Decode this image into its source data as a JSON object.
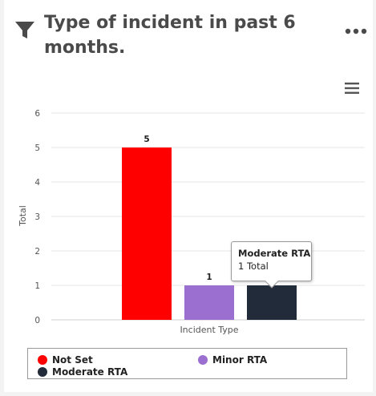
{
  "card": {
    "title": "Type of incident in past 6 months.",
    "icons": {
      "filter": "filter-icon",
      "more": "more-horizontal-icon",
      "menu": "hamburger-menu-icon"
    }
  },
  "chart_data": {
    "type": "bar",
    "categories": [
      "Not Set",
      "Minor RTA",
      "Moderate RTA"
    ],
    "values": [
      5,
      1,
      1
    ],
    "colors": [
      "#ff0000",
      "#9b6fd0",
      "#222b3a"
    ],
    "xlabel": "Incident Type",
    "ylabel": "Total",
    "ylim": [
      0,
      6
    ],
    "yticks": [
      "0",
      "1",
      "2",
      "3",
      "4",
      "5",
      "6"
    ],
    "grid": true,
    "data_labels": [
      "5",
      "1",
      "1"
    ],
    "legend": {
      "position": "bottom",
      "items": [
        "Not Set",
        "Minor RTA",
        "Moderate RTA"
      ]
    },
    "tooltip": {
      "title": "Moderate RTA",
      "value_text": "1 Total"
    }
  }
}
